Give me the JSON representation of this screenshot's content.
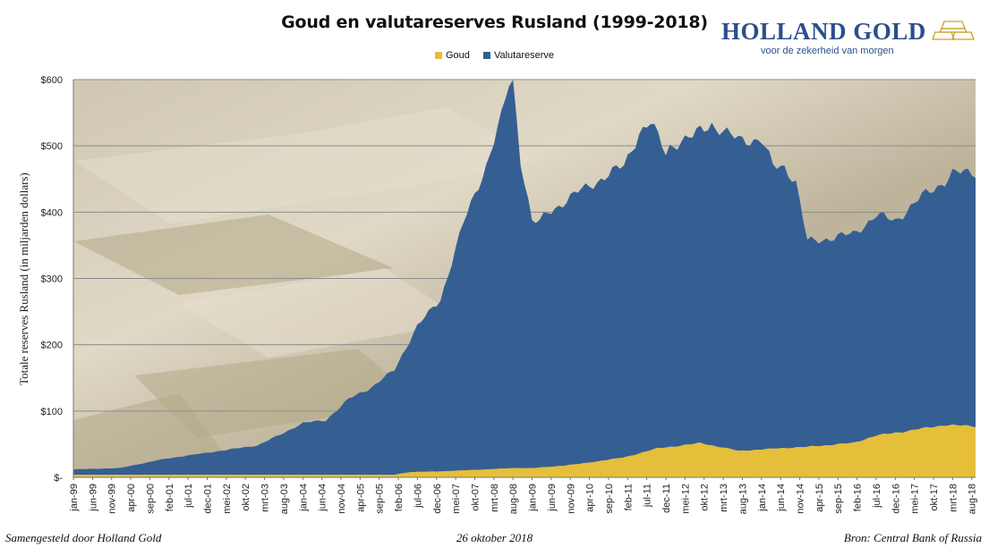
{
  "colors": {
    "goud": "#e5be3a",
    "valutareserve": "#355f93",
    "brand": "#2a4f8c",
    "gridline": "#8c8c8c"
  },
  "logo": {
    "name": "HOLLAND GOLD",
    "tagline": "voor de zekerheid van morgen",
    "icon": "gold-bars-icon"
  },
  "footer": {
    "left": "Samengesteld door Holland Gold",
    "center": "26 oktober 2018",
    "right": "Bron: Central Bank of Russia"
  },
  "chart_data": {
    "type": "area",
    "stacked": true,
    "title": "Goud en valutareserves Rusland (1999-2018)",
    "xlabel": "",
    "ylabel": "Totale reserves Rusland (in miljarden dollars)",
    "ylim": [
      0,
      600
    ],
    "yticks": [
      0,
      100,
      200,
      300,
      400,
      500,
      600
    ],
    "ytick_labels": [
      "$-",
      "$100",
      "$200",
      "$300",
      "$400",
      "$500",
      "$600"
    ],
    "grid": "horizontal",
    "legend_position": "top",
    "background": "photo of gold bars",
    "xtick_labels": [
      "jan-99",
      "jun-99",
      "nov-99",
      "apr-00",
      "sep-00",
      "feb-01",
      "jul-01",
      "dec-01",
      "mei-02",
      "okt-02",
      "mrt-03",
      "aug-03",
      "jan-04",
      "jun-04",
      "nov-04",
      "apr-05",
      "sep-05",
      "feb-06",
      "jul-06",
      "dec-06",
      "mei-07",
      "okt-07",
      "mrt-08",
      "aug-08",
      "jan-09",
      "jun-09",
      "nov-09",
      "apr-10",
      "sep-10",
      "feb-11",
      "jul-11",
      "dec-11",
      "mei-12",
      "okt-12",
      "mrt-13",
      "aug-13",
      "jan-14",
      "jun-14",
      "nov-14",
      "apr-15",
      "sep-15",
      "feb-16",
      "jul-16",
      "dec-16",
      "mei-17",
      "okt-17",
      "mrt-18",
      "aug-18"
    ],
    "x_start": "jan-99",
    "x_end": "sep-18",
    "frequency": "monthly",
    "series": [
      {
        "name": "Goud",
        "color": "#e5be3a",
        "points": [
          [
            "jan-99",
            4
          ],
          [
            "jan-00",
            4
          ],
          [
            "jan-01",
            4
          ],
          [
            "jan-02",
            4
          ],
          [
            "jan-03",
            4
          ],
          [
            "jan-04",
            4
          ],
          [
            "jan-05",
            4
          ],
          [
            "jan-06",
            4
          ],
          [
            "mei-06",
            8
          ],
          [
            "jan-07",
            9
          ],
          [
            "jan-08",
            12
          ],
          [
            "aug-08",
            14
          ],
          [
            "jan-09",
            14
          ],
          [
            "jun-09",
            16
          ],
          [
            "jan-10",
            20
          ],
          [
            "jan-11",
            30
          ],
          [
            "okt-11",
            44
          ],
          [
            "jul-12",
            50
          ],
          [
            "sep-12",
            52
          ],
          [
            "jul-13",
            40
          ],
          [
            "jan-14",
            42
          ],
          [
            "jun-14",
            44
          ],
          [
            "jan-15",
            46
          ],
          [
            "jan-16",
            52
          ],
          [
            "jul-16",
            63
          ],
          [
            "jan-17",
            68
          ],
          [
            "jan-18",
            79
          ],
          [
            "sep-18",
            77
          ]
        ]
      },
      {
        "name": "Valutareserve",
        "color": "#355f93",
        "points": [
          [
            "jan-99",
            8
          ],
          [
            "jan-00",
            10
          ],
          [
            "jan-01",
            24
          ],
          [
            "jan-02",
            34
          ],
          [
            "jan-03",
            44
          ],
          [
            "jul-03",
            60
          ],
          [
            "jan-04",
            78
          ],
          [
            "jul-04",
            82
          ],
          [
            "jan-05",
            114
          ],
          [
            "jul-05",
            132
          ],
          [
            "jan-06",
            158
          ],
          [
            "jul-06",
            220
          ],
          [
            "jan-07",
            259
          ],
          [
            "jul-07",
            372
          ],
          [
            "jan-08",
            459
          ],
          [
            "mei-08",
            530
          ],
          [
            "jul-08",
            580
          ],
          [
            "aug-08",
            582
          ],
          [
            "okt-08",
            465
          ],
          [
            "jan-09",
            372
          ],
          [
            "mrt-09",
            370
          ],
          [
            "mei-09",
            383
          ],
          [
            "jan-10",
            410
          ],
          [
            "jan-11",
            440
          ],
          [
            "mei-11",
            484
          ],
          [
            "aug-11",
            493
          ],
          [
            "dec-11",
            444
          ],
          [
            "jan-12",
            454
          ],
          [
            "jul-12",
            463
          ],
          [
            "dec-12",
            486
          ],
          [
            "jan-13",
            480
          ],
          [
            "mei-13",
            472
          ],
          [
            "aug-13",
            470
          ],
          [
            "jan-14",
            466
          ],
          [
            "apr-14",
            426
          ],
          [
            "jul-14",
            425
          ],
          [
            "okt-14",
            400
          ],
          [
            "jan-15",
            310
          ],
          [
            "mrt-15",
            310
          ],
          [
            "jul-15",
            312
          ],
          [
            "jan-16",
            315
          ],
          [
            "jul-16",
            332
          ],
          [
            "dec-16",
            320
          ],
          [
            "jul-17",
            350
          ],
          [
            "jan-18",
            368
          ],
          [
            "mrt-18",
            380
          ],
          [
            "sep-18",
            383
          ]
        ]
      }
    ]
  }
}
